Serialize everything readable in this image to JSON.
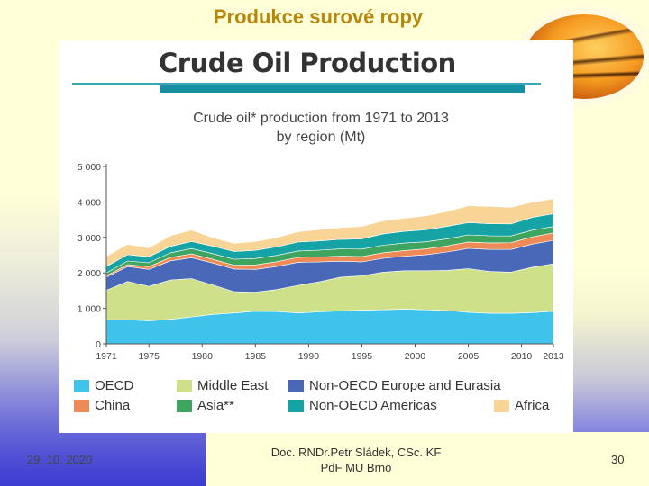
{
  "slide": {
    "title": "Produkce surové ropy",
    "footer_date": "29. 10. 2020",
    "footer_author_line1": "Doc. RNDr.Petr Sládek, CSc. KF",
    "footer_author_line2": "PdF MU Brno",
    "page_number": "30",
    "decor_image": "sunset-image"
  },
  "figure": {
    "heading": "Crude Oil Production",
    "subtitle_line1": "Crude oil* production from 1971 to 2013",
    "subtitle_line2": "by region (Mt)"
  },
  "colors": {
    "OECD": "#3fc3ea",
    "Middle East": "#cfe08a",
    "Non-OECD Europe and Eurasia": "#4a68b8",
    "China": "#ee8a55",
    "Asia**": "#3fa460",
    "Non-OECD Americas": "#16a3a6",
    "Africa": "#f8d596"
  },
  "chart_data": {
    "type": "area",
    "stacked": true,
    "title": "Crude oil* production from 1971 to 2013 by region (Mt)",
    "xlabel": "",
    "ylabel": "",
    "x_ticks": [
      "1971",
      "1975",
      "1980",
      "1985",
      "1990",
      "1995",
      "2000",
      "2005",
      "2010",
      "2013"
    ],
    "y_ticks": [
      "0",
      "1 000",
      "2 000",
      "3 000",
      "4 000",
      "5 000"
    ],
    "ylim": [
      0,
      5000
    ],
    "xlim": [
      1971,
      2013
    ],
    "x": [
      1971,
      1973,
      1975,
      1977,
      1979,
      1981,
      1983,
      1985,
      1987,
      1989,
      1991,
      1993,
      1995,
      1997,
      1999,
      2001,
      2003,
      2005,
      2007,
      2009,
      2011,
      2013
    ],
    "series": [
      {
        "name": "OECD",
        "values": [
          680,
          680,
          650,
          690,
          760,
          830,
          870,
          920,
          910,
          870,
          900,
          930,
          950,
          960,
          980,
          960,
          940,
          890,
          860,
          860,
          880,
          920
        ]
      },
      {
        "name": "Middle East",
        "values": [
          830,
          1080,
          970,
          1110,
          1080,
          830,
          600,
          540,
          620,
          780,
          850,
          950,
          970,
          1060,
          1080,
          1100,
          1130,
          1230,
          1180,
          1160,
          1280,
          1340
        ]
      },
      {
        "name": "Non-OECD Europe and Eurasia",
        "values": [
          370,
          420,
          480,
          540,
          590,
          620,
          640,
          640,
          650,
          650,
          560,
          450,
          390,
          390,
          410,
          450,
          520,
          570,
          620,
          640,
          650,
          660
        ]
      },
      {
        "name": "China",
        "values": [
          40,
          55,
          75,
          95,
          105,
          102,
          105,
          125,
          135,
          137,
          140,
          145,
          150,
          158,
          160,
          165,
          170,
          180,
          186,
          190,
          203,
          208
        ]
      },
      {
        "name": "Asia**",
        "values": [
          80,
          100,
          110,
          130,
          150,
          160,
          170,
          180,
          180,
          180,
          190,
          200,
          210,
          210,
          210,
          200,
          200,
          200,
          200,
          190,
          190,
          180
        ]
      },
      {
        "name": "Non-OECD Americas",
        "values": [
          180,
          180,
          170,
          180,
          200,
          210,
          220,
          230,
          240,
          250,
          260,
          270,
          290,
          320,
          330,
          340,
          350,
          350,
          340,
          340,
          360,
          360
        ]
      },
      {
        "name": "Africa",
        "values": [
          290,
          290,
          250,
          300,
          320,
          240,
          230,
          250,
          260,
          290,
          320,
          330,
          350,
          370,
          370,
          390,
          420,
          470,
          490,
          470,
          430,
          420
        ]
      }
    ],
    "legend": [
      {
        "label": "OECD"
      },
      {
        "label": "Middle East"
      },
      {
        "label": "Non-OECD Europe and Eurasia"
      },
      {
        "label": "China"
      },
      {
        "label": "Asia**"
      },
      {
        "label": "Non-OECD Americas"
      },
      {
        "label": "Africa"
      }
    ],
    "legend_position": "bottom",
    "grid": false
  }
}
